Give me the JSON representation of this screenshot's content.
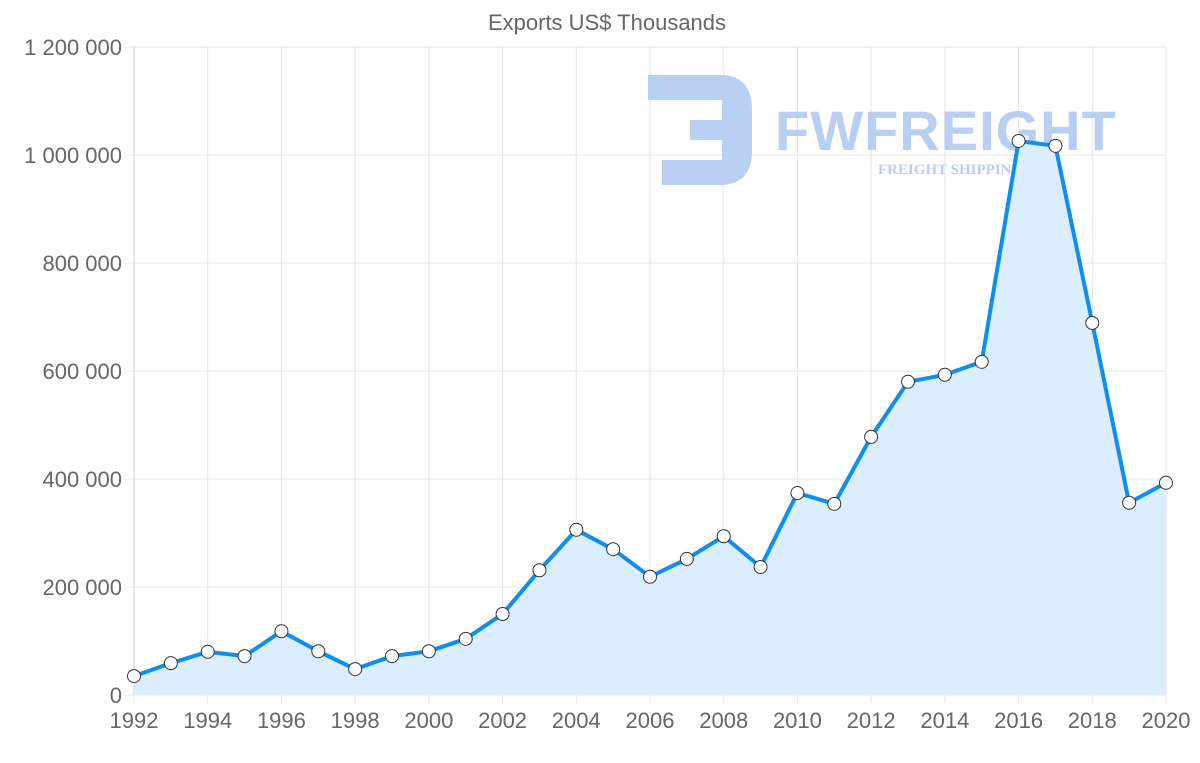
{
  "chart_data": {
    "type": "area",
    "title": "Exports US$ Thousands",
    "xlabel": "",
    "ylabel": "",
    "x": [
      1992,
      1993,
      1994,
      1995,
      1996,
      1997,
      1998,
      1999,
      2000,
      2001,
      2002,
      2003,
      2004,
      2005,
      2006,
      2007,
      2008,
      2009,
      2010,
      2011,
      2012,
      2013,
      2014,
      2015,
      2016,
      2017,
      2018,
      2019,
      2020
    ],
    "series": [
      {
        "name": "Exports US$ Thousands",
        "values": [
          35000,
          59000,
          80000,
          72000,
          118000,
          81000,
          48000,
          72000,
          81000,
          104000,
          150000,
          231000,
          306000,
          270000,
          219000,
          252000,
          294000,
          237000,
          374000,
          354000,
          478000,
          580000,
          593000,
          617000,
          1026000,
          1017000,
          689000,
          356000,
          393000
        ]
      }
    ],
    "xlim": [
      1992,
      2020
    ],
    "ylim": [
      0,
      1200000
    ],
    "x_ticks": [
      "1992",
      "1994",
      "1996",
      "1998",
      "2000",
      "2002",
      "2004",
      "2006",
      "2008",
      "2010",
      "2012",
      "2014",
      "2016",
      "2018",
      "2020"
    ],
    "y_ticks": [
      "0",
      "200 000",
      "400 000",
      "600 000",
      "800 000",
      "1 000 000",
      "1 200 000"
    ],
    "grid": true,
    "legend": "none",
    "colors": {
      "line": "#0d8ef0",
      "fill": "#dbeeff",
      "point_fill": "#ffffff",
      "point_stroke": "#333333"
    }
  },
  "watermark": {
    "brand": "FWFREIGHT",
    "tagline": "FREIGHT SHIPPING"
  }
}
